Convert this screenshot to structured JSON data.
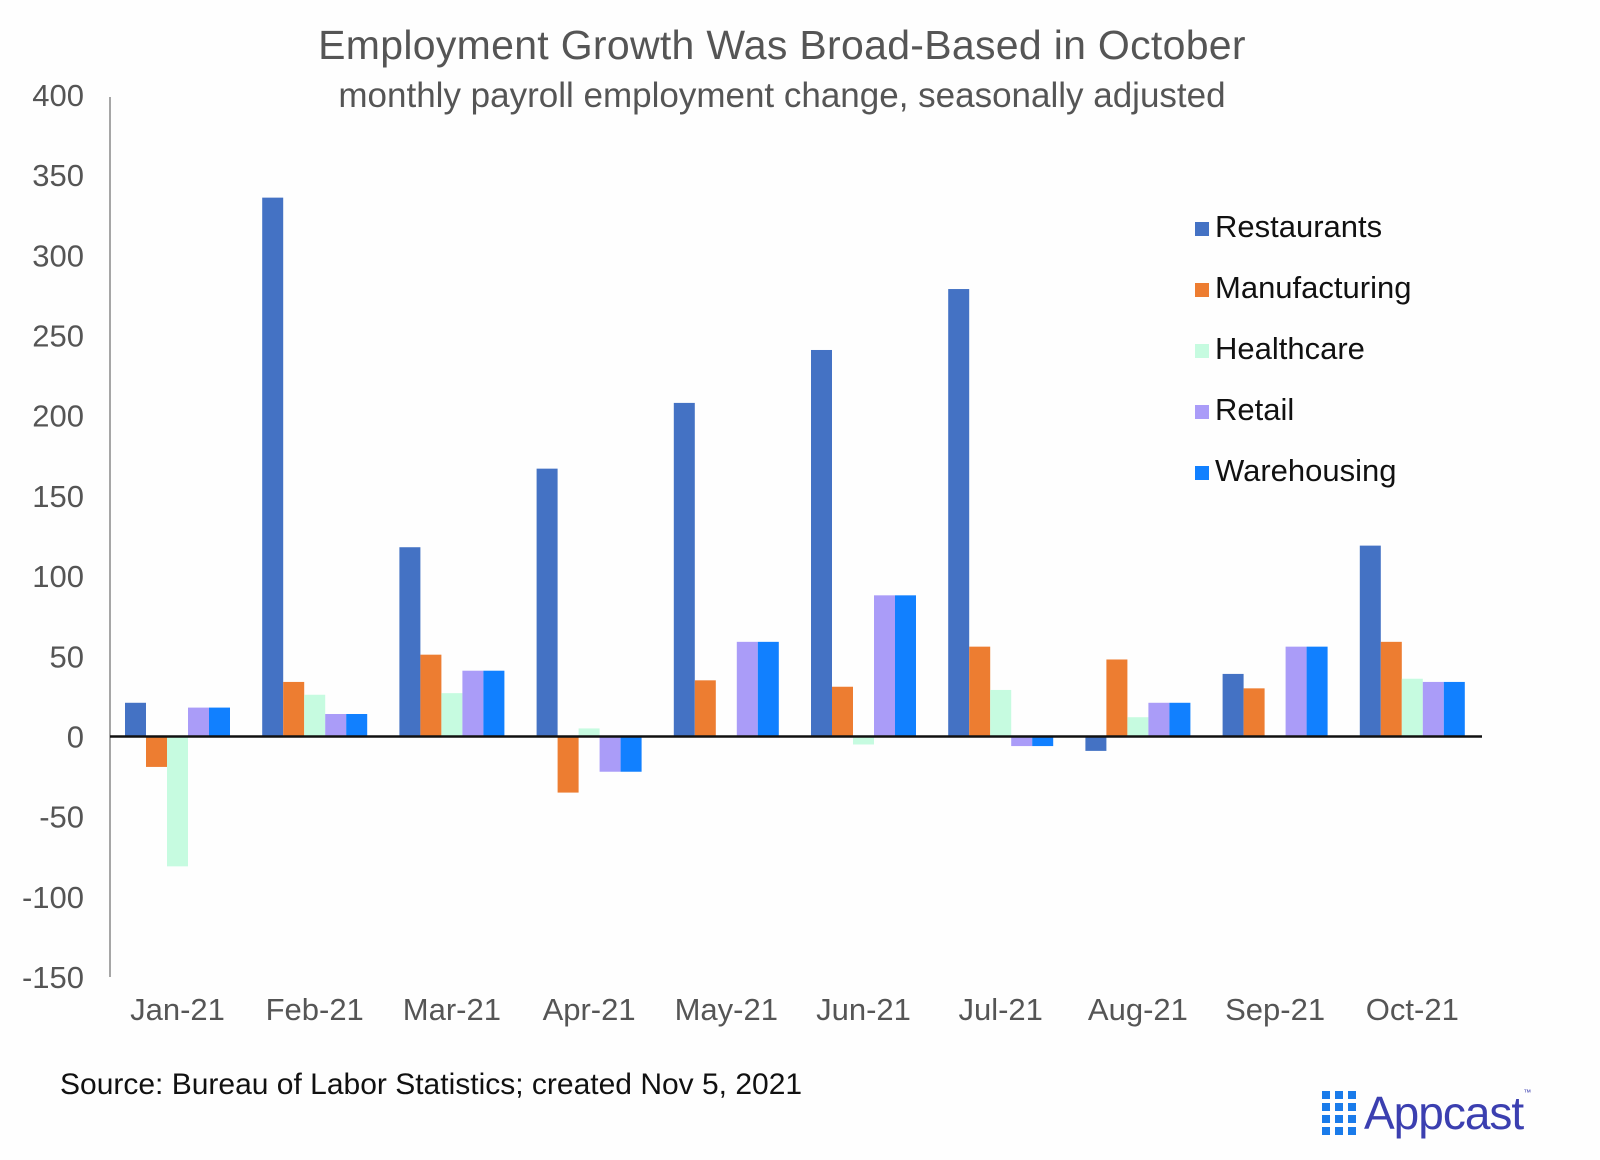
{
  "chart_data": {
    "type": "bar",
    "title": "Employment Growth Was Broad-Based in October",
    "subtitle": "monthly payroll employment change, seasonally adjusted",
    "xlabel": "",
    "ylabel": "",
    "ylim": [
      -150,
      400
    ],
    "yticks": [
      "400",
      "350",
      "300",
      "250",
      "200",
      "150",
      "100",
      "50",
      "0",
      "-50",
      "-100",
      "-150"
    ],
    "ytick_values": [
      400,
      350,
      300,
      250,
      200,
      150,
      100,
      50,
      0,
      -50,
      -100,
      -150
    ],
    "grid": false,
    "legend_position": "top-right",
    "categories": [
      "Jan-21",
      "Feb-21",
      "Mar-21",
      "Apr-21",
      "May-21",
      "Jun-21",
      "Jul-21",
      "Aug-21",
      "Sep-21",
      "Oct-21"
    ],
    "series": [
      {
        "name": "Restaurants",
        "color": "#4472c4",
        "values": [
          21,
          336,
          118,
          167,
          208,
          241,
          279,
          -9,
          39,
          119
        ]
      },
      {
        "name": "Manufacturing",
        "color": "#ed7d31",
        "values": [
          -19,
          34,
          51,
          -35,
          35,
          31,
          56,
          48,
          30,
          59
        ]
      },
      {
        "name": "Healthcare",
        "color": "#c6fbe0",
        "values": [
          -81,
          26,
          27,
          5,
          0,
          -5,
          29,
          12,
          0,
          36
        ]
      },
      {
        "name": "Retail",
        "color": "#aa9cf8",
        "values": [
          18,
          14,
          41,
          -22,
          59,
          88,
          -6,
          21,
          56,
          34
        ]
      },
      {
        "name": "Warehousing",
        "color": "#1180ff",
        "values": [
          18,
          14,
          41,
          -22,
          59,
          88,
          -6,
          21,
          56,
          34
        ]
      }
    ]
  },
  "footer": {
    "source": "Source: Bureau of Labor Statistics; created Nov 5, 2021",
    "logo_text": "Appcast",
    "logo_tm": "™"
  }
}
